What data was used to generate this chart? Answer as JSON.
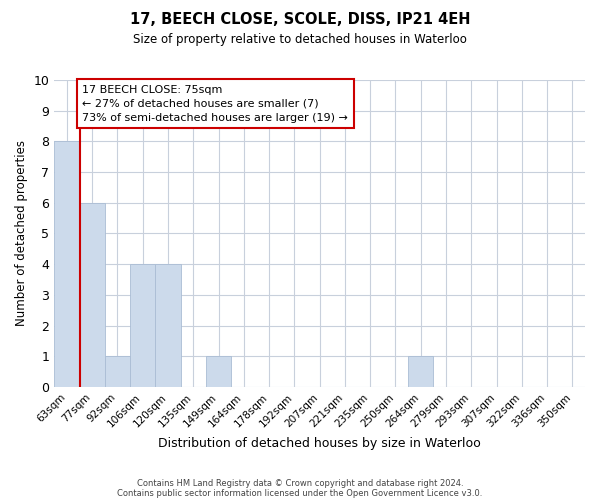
{
  "title": "17, BEECH CLOSE, SCOLE, DISS, IP21 4EH",
  "subtitle": "Size of property relative to detached houses in Waterloo",
  "xlabel": "Distribution of detached houses by size in Waterloo",
  "ylabel": "Number of detached properties",
  "bar_color": "#ccdaeb",
  "bar_edge_color": "#aabdd4",
  "bin_labels": [
    "63sqm",
    "77sqm",
    "92sqm",
    "106sqm",
    "120sqm",
    "135sqm",
    "149sqm",
    "164sqm",
    "178sqm",
    "192sqm",
    "207sqm",
    "221sqm",
    "235sqm",
    "250sqm",
    "264sqm",
    "279sqm",
    "293sqm",
    "307sqm",
    "322sqm",
    "336sqm",
    "350sqm"
  ],
  "bar_heights": [
    8,
    6,
    1,
    4,
    4,
    0,
    1,
    0,
    0,
    0,
    0,
    0,
    0,
    0,
    1,
    0,
    0,
    0,
    0,
    0,
    0
  ],
  "ylim": [
    0,
    10
  ],
  "yticks": [
    0,
    1,
    2,
    3,
    4,
    5,
    6,
    7,
    8,
    9,
    10
  ],
  "property_line_color": "#cc0000",
  "annotation_title": "17 BEECH CLOSE: 75sqm",
  "annotation_line1": "← 27% of detached houses are smaller (7)",
  "annotation_line2": "73% of semi-detached houses are larger (19) →",
  "annotation_box_color": "#ffffff",
  "annotation_box_edge": "#cc0000",
  "footnote1": "Contains HM Land Registry data © Crown copyright and database right 2024.",
  "footnote2": "Contains public sector information licensed under the Open Government Licence v3.0.",
  "background_color": "#ffffff",
  "grid_color": "#c8d0dc"
}
